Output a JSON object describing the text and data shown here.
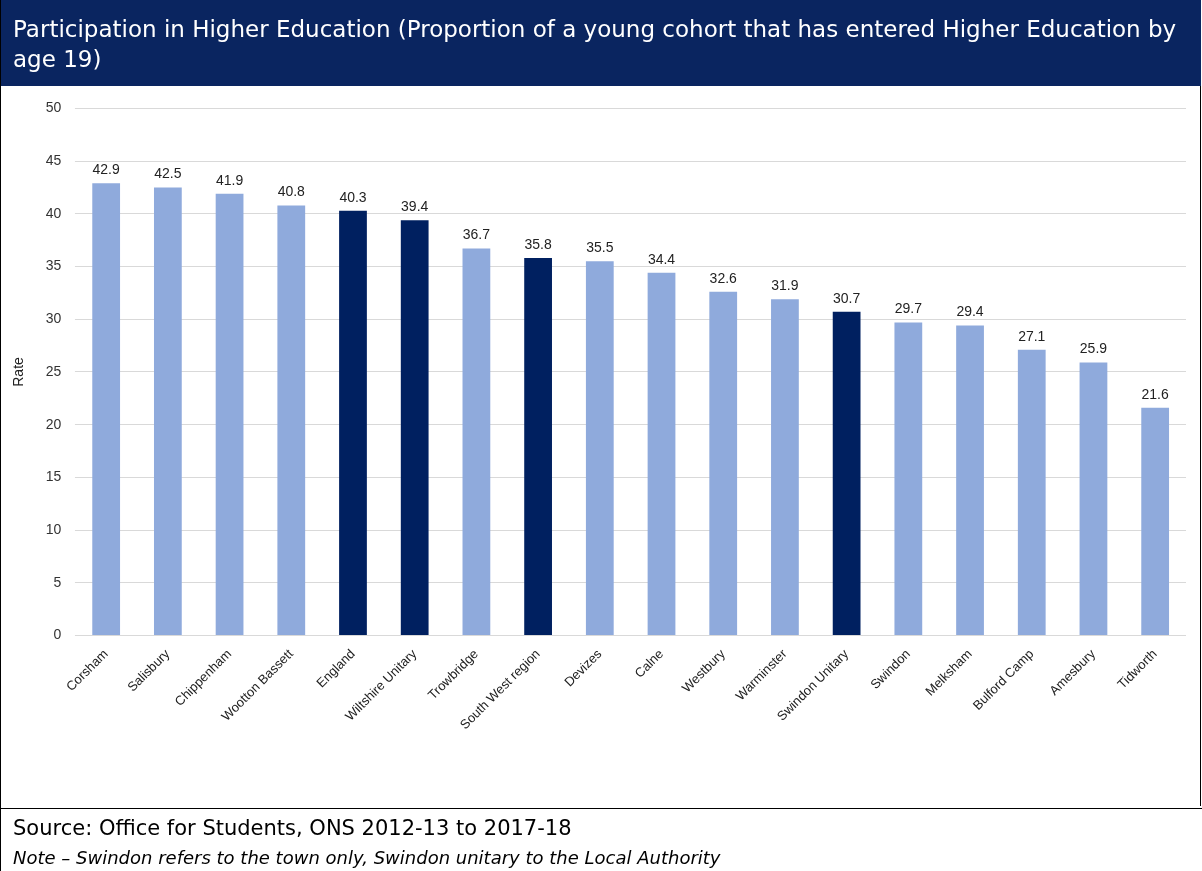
{
  "chart_data": {
    "type": "bar",
    "title": "Participation in Higher Education (Proportion of a young cohort that has entered Higher Education by age 19)",
    "ylabel": "Rate",
    "categories": [
      "Corsham",
      "Salisbury",
      "Chippenham",
      "Wootton Bassett",
      "England",
      "Wiltshire Unitary",
      "Trowbridge",
      "South West region",
      "Devizes",
      "Calne",
      "Westbury",
      "Warminster",
      "Swindon Unitary",
      "Swindon",
      "Melksham",
      "Bulford Camp",
      "Amesbury",
      "Tidworth"
    ],
    "values": [
      42.9,
      42.5,
      41.9,
      40.8,
      40.3,
      39.4,
      36.7,
      35.8,
      35.5,
      34.4,
      32.6,
      31.9,
      30.7,
      29.7,
      29.4,
      27.1,
      25.9,
      21.6
    ],
    "colors": [
      "#8faadc",
      "#8faadc",
      "#8faadc",
      "#8faadc",
      "#002060",
      "#002060",
      "#8faadc",
      "#002060",
      "#8faadc",
      "#8faadc",
      "#8faadc",
      "#8faadc",
      "#002060",
      "#8faadc",
      "#8faadc",
      "#8faadc",
      "#8faadc",
      "#8faadc"
    ],
    "ylim": [
      0,
      50
    ],
    "yticks": [
      0,
      5,
      10,
      15,
      20,
      25,
      30,
      35,
      40,
      45,
      50
    ],
    "grid": "y",
    "data_labels": true,
    "annotations": [
      "Source: Office for Students, ONS 2012-13 to 2017-18",
      "Note – Swindon refers to the town only, Swindon unitary to the Local Authority"
    ]
  }
}
